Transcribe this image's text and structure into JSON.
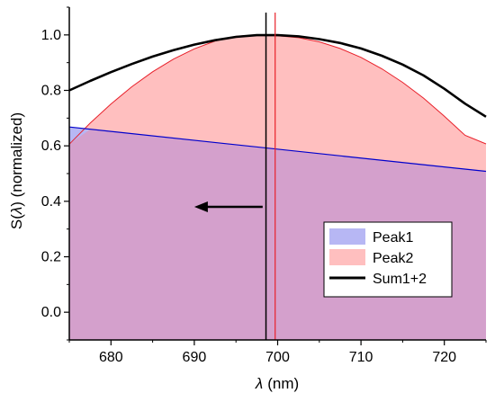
{
  "chart_data": {
    "type": "area",
    "xlabel_symbol": "λ",
    "xlabel_unit": "(nm)",
    "ylabel_prefix": "S(",
    "ylabel_symbol": "λ",
    "ylabel_suffix": ") (normalized)",
    "xlim": [
      675,
      725
    ],
    "ylim": [
      -0.1,
      1.1
    ],
    "xticks": [
      680,
      690,
      700,
      710,
      720
    ],
    "yticks": [
      0.0,
      0.2,
      0.4,
      0.6,
      0.8,
      1.0
    ],
    "xtick_labels": [
      "680",
      "690",
      "700",
      "710",
      "720"
    ],
    "ytick_labels": [
      "0.0",
      "0.2",
      "0.4",
      "0.6",
      "0.8",
      "1.0"
    ],
    "legend_position": "lower-right",
    "series": [
      {
        "name": "Peak1",
        "type": "area",
        "fill": "#b7b7f4",
        "stroke": "#0000cc",
        "x": [
          675,
          725
        ],
        "y": [
          0.668,
          0.508
        ]
      },
      {
        "name": "Peak2",
        "type": "area",
        "fill": "#ffbfbf",
        "stroke": "#e8202a",
        "peak_x": 699.7,
        "x": [
          675,
          677.5,
          680,
          682.5,
          685,
          687.5,
          690,
          692.5,
          695,
          697.5,
          700,
          702.5,
          705,
          707.5,
          710,
          712.5,
          715,
          717.5,
          720,
          722.5,
          725
        ],
        "y": [
          0.606,
          0.682,
          0.751,
          0.813,
          0.867,
          0.913,
          0.95,
          0.978,
          0.995,
          1.0,
          0.997,
          0.99,
          0.975,
          0.951,
          0.919,
          0.878,
          0.829,
          0.772,
          0.707,
          0.638,
          0.607
        ]
      },
      {
        "name": "Sum1+2",
        "type": "line",
        "stroke": "#000000",
        "peak_x": 698.6,
        "x": [
          675,
          677.5,
          680,
          682.5,
          685,
          687.5,
          690,
          692.5,
          695,
          697.5,
          700,
          702.5,
          705,
          707.5,
          710,
          712.5,
          715,
          717.5,
          720,
          722.5,
          725
        ],
        "y": [
          0.8,
          0.834,
          0.866,
          0.895,
          0.922,
          0.945,
          0.965,
          0.981,
          0.993,
          0.999,
          0.999,
          0.995,
          0.985,
          0.971,
          0.951,
          0.925,
          0.893,
          0.854,
          0.806,
          0.752,
          0.705
        ]
      }
    ],
    "markers": [
      {
        "name": "Sum1+2 peak",
        "x": 698.6,
        "color": "#000000"
      },
      {
        "name": "Peak2 peak",
        "x": 699.7,
        "color": "#e8202a"
      }
    ],
    "arrow": {
      "x_from": 698.2,
      "x_to": 690.0,
      "y": 0.38,
      "direction": "left"
    },
    "overlap_color": "#d4a0cc"
  }
}
